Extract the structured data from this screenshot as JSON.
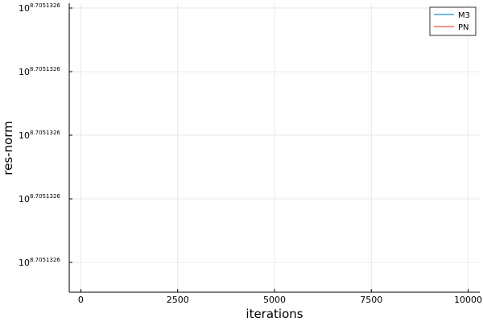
{
  "chart_data": {
    "type": "line",
    "title": "",
    "xlabel": "iterations",
    "ylabel": "res-norm",
    "xlim": [
      -300,
      10300
    ],
    "x_ticks": [
      0,
      2500,
      5000,
      7500,
      10000
    ],
    "y_scale": "log",
    "y_tick_base": "10",
    "y_tick_exponent": "8.7051326",
    "y_tick_count": 5,
    "grid": true,
    "legend_position": "top-right",
    "series": [
      {
        "name": "M3",
        "color": "#1f8fd6",
        "x": [],
        "y": []
      },
      {
        "name": "PN",
        "color": "#e05a3a",
        "x": [],
        "y": []
      }
    ]
  }
}
